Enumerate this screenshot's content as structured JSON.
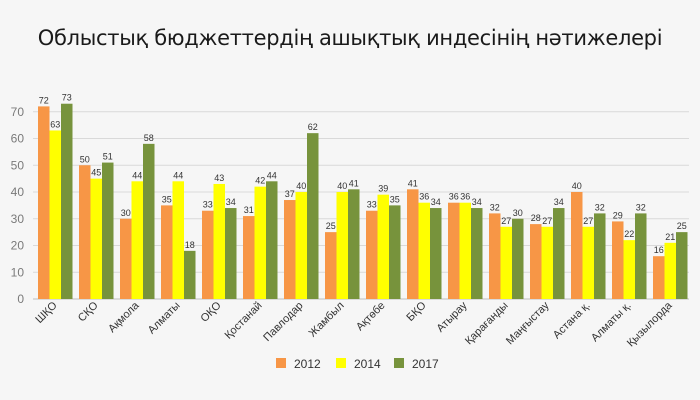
{
  "chart_data": {
    "type": "bar",
    "title": "Облыстық бюджеттердің ашықтық индесінің нәтижелері",
    "xlabel": "",
    "ylabel": "",
    "ylim": [
      0,
      80
    ],
    "yticks": [
      0,
      10,
      20,
      30,
      40,
      50,
      60,
      70
    ],
    "grid": true,
    "legend_position": "bottom",
    "categories": [
      "ШҚО",
      "СҚО",
      "Ақмола",
      "Алматы",
      "ОҚО",
      "Қостанай",
      "Павлодар",
      "Жамбыл",
      "Ақтөбе",
      "БҚО",
      "Атырау",
      "Қарағанды",
      "Маңғыстау",
      "Астана қ.",
      "Алматы қ.",
      "Қызылорда"
    ],
    "series": [
      {
        "name": "2012",
        "color": "#f79646",
        "values": [
          72,
          50,
          30,
          35,
          33,
          31,
          37,
          25,
          33,
          41,
          36,
          32,
          28,
          40,
          29,
          16
        ]
      },
      {
        "name": "2014",
        "color": "#ffff00",
        "values": [
          63,
          45,
          44,
          44,
          43,
          42,
          40,
          40,
          39,
          36,
          36,
          27,
          27,
          27,
          22,
          21
        ]
      },
      {
        "name": "2017",
        "color": "#77933c",
        "values": [
          73,
          51,
          58,
          18,
          34,
          44,
          62,
          41,
          35,
          34,
          34,
          30,
          34,
          32,
          32,
          25
        ]
      }
    ]
  }
}
